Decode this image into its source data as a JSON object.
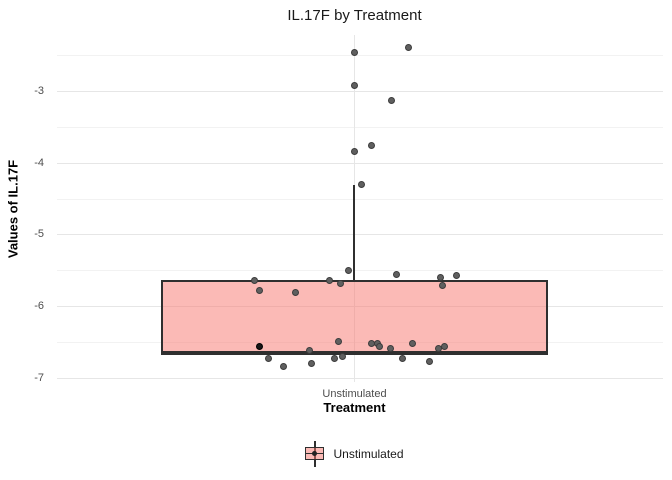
{
  "title": "IL.17F by Treatment",
  "colors": {
    "background": "#ffffff",
    "grid_major": "#e6e6e6",
    "grid_minor": "#f2f2f2",
    "box_fill": "rgba(248,118,109,0.5)",
    "box_border": "#2f2f2f",
    "whisker": "#2f2f2f",
    "point_fill": "#5f5f5f",
    "point_border": "#3c3c3c",
    "point_dark_fill": "#161616",
    "point_dark_border": "#000000",
    "tick_label": "#4d4d4d",
    "title_color": "#1a1a1a"
  },
  "legend": {
    "position": "bottom",
    "entries": [
      "Unstimulated"
    ]
  },
  "chart_data": {
    "type": "boxplot",
    "title": "IL.17F by Treatment",
    "xlabel": "Treatment",
    "ylabel": "Values of IL.17F",
    "categories": [
      "Unstimulated"
    ],
    "y_ticks": [
      -3,
      -4,
      -5,
      -6,
      -7
    ],
    "y_minor_ticks": [
      -2.5,
      -3.5,
      -4.5,
      -5.5,
      -6.5
    ],
    "ylim": [
      -7.1,
      -2.2
    ],
    "grid": "major+minor horizontal, major vertical at category",
    "legend_position": "bottom",
    "series": [
      {
        "name": "Unstimulated",
        "box": {
          "q3": -5.64,
          "q1": -6.66,
          "median": -6.64,
          "whisker_high": -4.31,
          "whisker_low": -6.66
        },
        "jitter_points": [
          {
            "dx": 0,
            "v": -2.45
          },
          {
            "dx": 54,
            "v": -2.39
          },
          {
            "dx": 0,
            "v": -2.92
          },
          {
            "dx": 37,
            "v": -3.13
          },
          {
            "dx": 17,
            "v": -3.76
          },
          {
            "dx": 0,
            "v": -3.83
          },
          {
            "dx": 7,
            "v": -4.3
          },
          {
            "dx": -100,
            "v": -5.64
          },
          {
            "dx": -95,
            "v": -5.78
          },
          {
            "dx": -59,
            "v": -5.8
          },
          {
            "dx": -25,
            "v": -5.63
          },
          {
            "dx": -14,
            "v": -5.68
          },
          {
            "dx": -6,
            "v": -5.5
          },
          {
            "dx": 42,
            "v": -5.55
          },
          {
            "dx": 86,
            "v": -5.59
          },
          {
            "dx": 102,
            "v": -5.57
          },
          {
            "dx": 88,
            "v": -5.71
          },
          {
            "dx": -95,
            "v": -6.55,
            "dark": true
          },
          {
            "dx": -86,
            "v": -6.73
          },
          {
            "dx": -71,
            "v": -6.83
          },
          {
            "dx": -45,
            "v": -6.61
          },
          {
            "dx": -43,
            "v": -6.79
          },
          {
            "dx": -20,
            "v": -6.72
          },
          {
            "dx": -16,
            "v": -6.49
          },
          {
            "dx": -12,
            "v": -6.7
          },
          {
            "dx": 17,
            "v": -6.51
          },
          {
            "dx": 23,
            "v": -6.51
          },
          {
            "dx": 25,
            "v": -6.55
          },
          {
            "dx": 36,
            "v": -6.59
          },
          {
            "dx": 48,
            "v": -6.73
          },
          {
            "dx": 58,
            "v": -6.51
          },
          {
            "dx": 75,
            "v": -6.76
          },
          {
            "dx": 84,
            "v": -6.59
          },
          {
            "dx": 90,
            "v": -6.56
          }
        ]
      }
    ]
  }
}
